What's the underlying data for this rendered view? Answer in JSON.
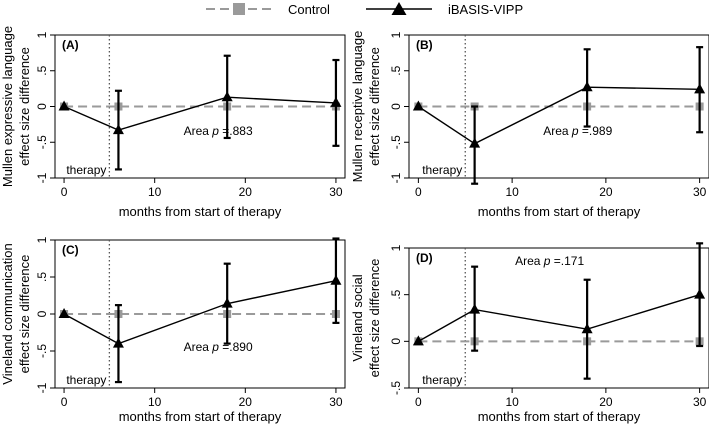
{
  "legend": {
    "control_label": "Control",
    "treatment_label": "iBASIS-VIPP",
    "control_color": "#9a9a9a",
    "treatment_color": "#000000"
  },
  "chart_data": [
    {
      "type": "line",
      "panel_label": "(A)",
      "ylabel_line1": "Mullen expressive language",
      "ylabel_line2": "effect size difference",
      "xlabel": "months from start of therapy",
      "xlim": [
        -1,
        31
      ],
      "ylim": [
        -1,
        1
      ],
      "xticks": [
        0,
        10,
        20,
        30
      ],
      "yticks": [
        -1,
        -0.5,
        0,
        0.5,
        1
      ],
      "ytick_labels": [
        "-1",
        "-.5",
        "0",
        ".5",
        "1"
      ],
      "therapy_x": 5,
      "therapy_label": "therapy",
      "annotation_prefix": "Area ",
      "annotation_p": "p",
      "annotation_value": " =.883",
      "annotation_at": [
        17,
        -0.4
      ],
      "series": [
        {
          "name": "Control",
          "x": [
            0,
            6,
            18,
            30
          ],
          "y": [
            0,
            0,
            0,
            0
          ]
        },
        {
          "name": "iBASIS-VIPP",
          "x": [
            0,
            6,
            18,
            30
          ],
          "y": [
            0,
            -0.33,
            0.13,
            0.05
          ],
          "lower": [
            null,
            -0.88,
            -0.44,
            -0.55
          ],
          "upper": [
            null,
            0.22,
            0.71,
            0.65
          ]
        }
      ]
    },
    {
      "type": "line",
      "panel_label": "(B)",
      "ylabel_line1": "Mullen receptive language",
      "ylabel_line2": "effect size difference",
      "xlabel": "months from start of therapy",
      "xlim": [
        -1,
        31
      ],
      "ylim": [
        -1,
        1
      ],
      "xticks": [
        0,
        10,
        20,
        30
      ],
      "yticks": [
        -1,
        -0.5,
        0,
        0.5,
        1
      ],
      "ytick_labels": [
        "-1",
        "-.5",
        "0",
        ".5",
        "1"
      ],
      "therapy_x": 5,
      "therapy_label": "therapy",
      "annotation_prefix": "Area ",
      "annotation_p": "p",
      "annotation_value": " =.989",
      "annotation_at": [
        17,
        -0.4
      ],
      "series": [
        {
          "name": "Control",
          "x": [
            0,
            6,
            18,
            30
          ],
          "y": [
            0,
            0,
            0,
            0
          ]
        },
        {
          "name": "iBASIS-VIPP",
          "x": [
            0,
            6,
            18,
            30
          ],
          "y": [
            0,
            -0.52,
            0.27,
            0.24
          ],
          "lower": [
            null,
            -1.08,
            -0.28,
            -0.36
          ],
          "upper": [
            null,
            0.0,
            0.8,
            0.83
          ]
        }
      ]
    },
    {
      "type": "line",
      "panel_label": "(C)",
      "ylabel_line1": "Vineland communication",
      "ylabel_line2": "effect size difference",
      "xlabel": "months from start of therapy",
      "xlim": [
        -1,
        31
      ],
      "ylim": [
        -1,
        1
      ],
      "xticks": [
        0,
        10,
        20,
        30
      ],
      "yticks": [
        -1,
        -0.5,
        0,
        0.5,
        1
      ],
      "ytick_labels": [
        "-1",
        "-.5",
        "0",
        ".5",
        "1"
      ],
      "therapy_x": 5,
      "therapy_label": "therapy",
      "annotation_prefix": "Area ",
      "annotation_p": "p",
      "annotation_value": " =.890",
      "annotation_at": [
        17,
        -0.5
      ],
      "series": [
        {
          "name": "Control",
          "x": [
            0,
            6,
            18,
            30
          ],
          "y": [
            0,
            0,
            0,
            0
          ]
        },
        {
          "name": "iBASIS-VIPP",
          "x": [
            0,
            6,
            18,
            30
          ],
          "y": [
            0,
            -0.4,
            0.14,
            0.45
          ],
          "lower": [
            null,
            -0.92,
            -0.4,
            -0.12
          ],
          "upper": [
            null,
            0.12,
            0.68,
            1.02
          ]
        }
      ]
    },
    {
      "type": "line",
      "panel_label": "(D)",
      "ylabel_line1": "Vineland social",
      "ylabel_line2": "effect size difference",
      "xlabel": "months from start of therapy",
      "xlim": [
        -1,
        31
      ],
      "ylim": [
        -0.5,
        1
      ],
      "xticks": [
        0,
        10,
        20,
        30
      ],
      "yticks": [
        -0.5,
        0,
        0.5,
        1
      ],
      "ytick_labels": [
        "-.5",
        "0",
        ".5",
        "1"
      ],
      "therapy_x": 5,
      "therapy_label": "therapy",
      "annotation_prefix": "Area ",
      "annotation_p": "p",
      "annotation_value": " =.171",
      "annotation_at": [
        14,
        0.82
      ],
      "series": [
        {
          "name": "Control",
          "x": [
            0,
            6,
            18,
            30
          ],
          "y": [
            0,
            0,
            0,
            0
          ]
        },
        {
          "name": "iBASIS-VIPP",
          "x": [
            0,
            6,
            18,
            30
          ],
          "y": [
            0,
            0.34,
            0.13,
            0.5
          ],
          "lower": [
            null,
            -0.1,
            -0.4,
            -0.05
          ],
          "upper": [
            null,
            0.8,
            0.66,
            1.05
          ]
        }
      ]
    }
  ]
}
